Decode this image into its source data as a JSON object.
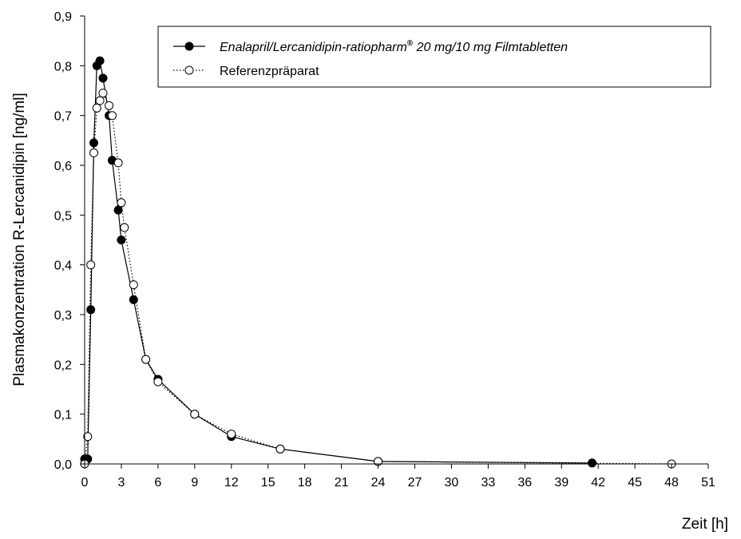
{
  "chart_data": {
    "type": "line",
    "xlabel": "Zeit [h]",
    "ylabel": "Plasmakonzentration R-Lercanidipin [ng/ml]",
    "xlim": [
      0,
      51
    ],
    "ylim": [
      0,
      0.9
    ],
    "xticks": [
      "0",
      "3",
      "6",
      "9",
      "12",
      "15",
      "18",
      "21",
      "24",
      "27",
      "30",
      "33",
      "36",
      "39",
      "42",
      "45",
      "48",
      "51"
    ],
    "yticks": [
      "0,0",
      "0,1",
      "0,2",
      "0,3",
      "0,4",
      "0,5",
      "0,6",
      "0,7",
      "0,8",
      "0,9"
    ],
    "grid": false,
    "legend_position": "top-right",
    "legend": {
      "test_main": "Enalapril/Lercanidipin-ratiopharm",
      "test_mark": "®",
      "test_rest": " 20 mg/10 mg Filmtabletten",
      "reference": "Referenzpräparat"
    },
    "series": [
      {
        "name": "Enalapril/Lercanidipin-ratiopharm® 20 mg/10 mg Filmtabletten",
        "marker": "filled-circle",
        "line": "solid",
        "x": [
          0,
          0.25,
          0.5,
          0.75,
          1,
          1.25,
          1.5,
          2,
          2.25,
          2.75,
          3,
          4,
          5,
          6,
          9,
          12,
          16,
          24,
          41.5
        ],
        "y": [
          0.01,
          0.01,
          0.31,
          0.645,
          0.8,
          0.81,
          0.775,
          0.7,
          0.61,
          0.51,
          0.45,
          0.33,
          0.21,
          0.17,
          0.1,
          0.055,
          0.03,
          0.005,
          0.002
        ]
      },
      {
        "name": "Referenzpräparat",
        "marker": "open-circle",
        "line": "dotted",
        "x": [
          0,
          0.25,
          0.5,
          0.75,
          1,
          1.25,
          1.5,
          2,
          2.25,
          2.75,
          3,
          3.25,
          4,
          5,
          6,
          9,
          12,
          16,
          24,
          48
        ],
        "y": [
          0.0,
          0.055,
          0.4,
          0.625,
          0.715,
          0.73,
          0.745,
          0.72,
          0.7,
          0.605,
          0.525,
          0.475,
          0.36,
          0.21,
          0.165,
          0.1,
          0.06,
          0.03,
          0.005,
          0.0
        ]
      }
    ]
  }
}
